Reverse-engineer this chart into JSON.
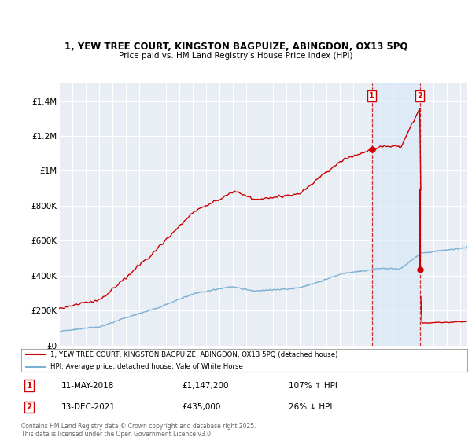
{
  "title_line1": "1, YEW TREE COURT, KINGSTON BAGPUIZE, ABINGDON, OX13 5PQ",
  "title_line2": "Price paid vs. HM Land Registry's House Price Index (HPI)",
  "ylim": [
    0,
    1500000
  ],
  "yticks": [
    0,
    200000,
    400000,
    600000,
    800000,
    1000000,
    1200000,
    1400000
  ],
  "ytick_labels": [
    "£0",
    "£200K",
    "£400K",
    "£600K",
    "£800K",
    "£1M",
    "£1.2M",
    "£1.4M"
  ],
  "background_color": "#ffffff",
  "plot_bg_color": "#e8eef4",
  "grid_color": "#ffffff",
  "red_color": "#cc0000",
  "blue_color": "#7ab0d4",
  "sale1_date": "11-MAY-2018",
  "sale1_price": 1147200,
  "sale1_label": "£1,147,200",
  "sale1_hpi": "107% ↑ HPI",
  "sale2_date": "13-DEC-2021",
  "sale2_price": 435000,
  "sale2_label": "£435,000",
  "sale2_hpi": "26% ↓ HPI",
  "legend_line1": "1, YEW TREE COURT, KINGSTON BAGPUIZE, ABINGDON, OX13 5PQ (detached house)",
  "legend_line2": "HPI: Average price, detached house, Vale of White Horse",
  "footnote": "Contains HM Land Registry data © Crown copyright and database right 2025.\nThis data is licensed under the Open Government Licence v3.0.",
  "shade_color": "#d8e8f8",
  "sale1_x": 2018.36,
  "sale2_x": 2021.95,
  "xmin": 1995,
  "xmax": 2025.5
}
